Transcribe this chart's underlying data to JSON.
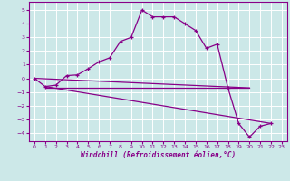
{
  "xlabel": "Windchill (Refroidissement éolien,°C)",
  "background_color": "#cce8e8",
  "line_color": "#880088",
  "grid_color": "#aadddd",
  "xlim": [
    -0.5,
    23.5
  ],
  "ylim": [
    -4.6,
    5.6
  ],
  "xticks": [
    0,
    1,
    2,
    3,
    4,
    5,
    6,
    7,
    8,
    9,
    10,
    11,
    12,
    13,
    14,
    15,
    16,
    17,
    18,
    19,
    20,
    21,
    22,
    23
  ],
  "yticks": [
    -4,
    -3,
    -2,
    -1,
    0,
    1,
    2,
    3,
    4,
    5
  ],
  "line1_x": [
    0,
    1,
    2,
    3,
    4,
    5,
    6,
    7,
    8,
    9,
    10,
    11,
    12,
    13,
    14,
    15,
    16,
    17,
    18,
    19,
    20,
    21,
    22
  ],
  "line1_y": [
    0.0,
    -0.6,
    -0.5,
    0.2,
    0.25,
    0.7,
    1.2,
    1.5,
    2.7,
    3.0,
    5.0,
    4.5,
    4.5,
    4.5,
    4.0,
    3.5,
    2.2,
    2.5,
    -0.7,
    -3.3,
    -4.3,
    -3.5,
    -3.3
  ],
  "line2_x": [
    0,
    20
  ],
  "line2_y": [
    0.0,
    -0.7
  ],
  "line3_x": [
    1,
    22
  ],
  "line3_y": [
    -0.6,
    -3.3
  ],
  "line4_x": [
    1,
    20
  ],
  "line4_y": [
    -0.7,
    -0.7
  ]
}
